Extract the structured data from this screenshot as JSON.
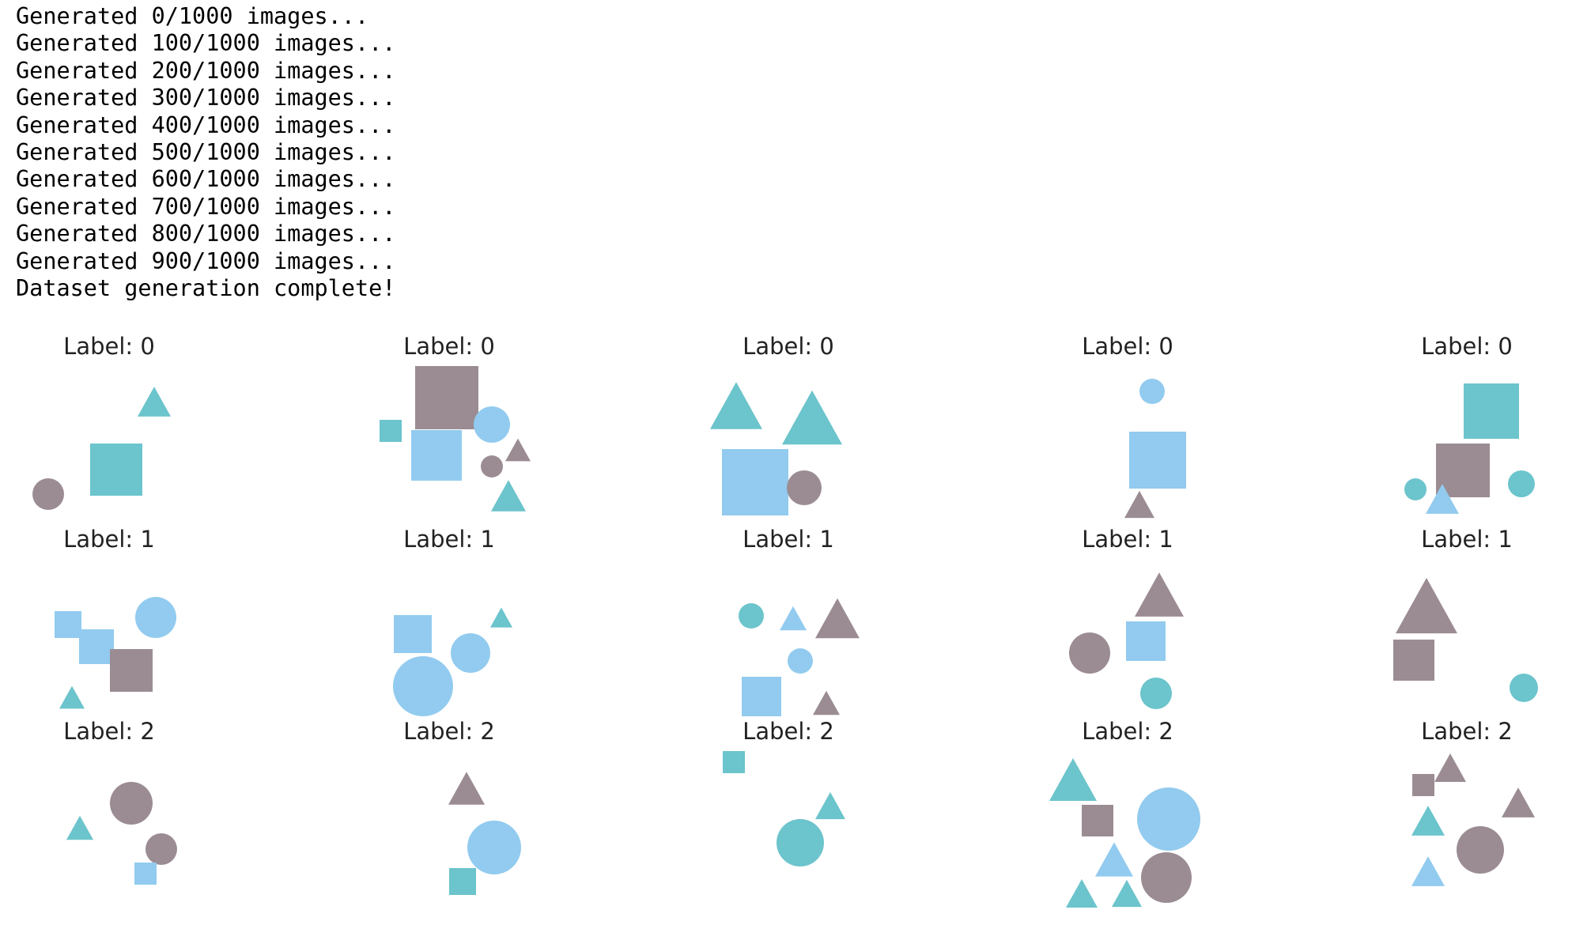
{
  "console": {
    "lines": [
      "Generated 0/1000 images...",
      "Generated 100/1000 images...",
      "Generated 200/1000 images...",
      "Generated 300/1000 images...",
      "Generated 400/1000 images...",
      "Generated 500/1000 images...",
      "Generated 600/1000 images...",
      "Generated 700/1000 images...",
      "Generated 800/1000 images...",
      "Generated 900/1000 images...",
      "Dataset generation complete!"
    ]
  },
  "colors": {
    "background": "#ffffff",
    "text": "#000000",
    "teal": "#6cc4cc",
    "light_blue": "#92cbef",
    "gray_mauve": "#9b8c93"
  },
  "samples": {
    "title_prefix": "Label: ",
    "rows": [
      {
        "label": "0",
        "panels": 5
      },
      {
        "label": "1",
        "panels": 5
      },
      {
        "label": "2",
        "panels": 5
      }
    ]
  }
}
